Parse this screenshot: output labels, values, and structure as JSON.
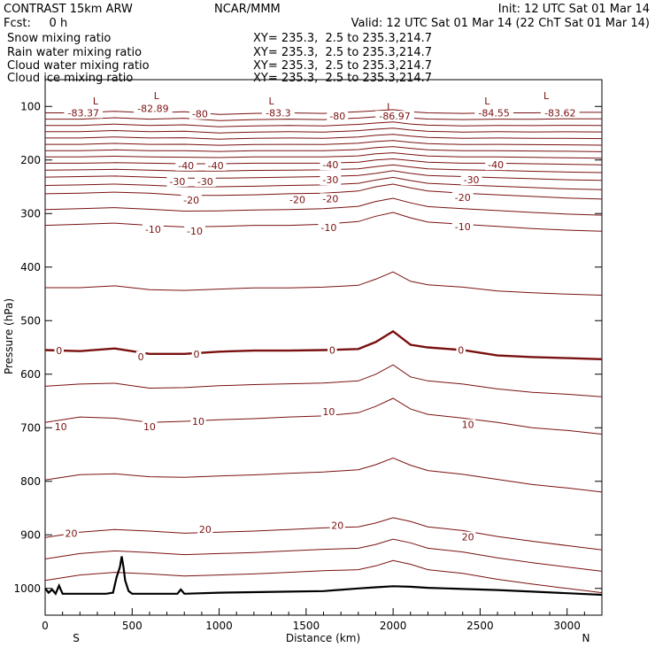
{
  "header": {
    "title_left": "CONTRAST 15km ARW",
    "title_center": "NCAR/MMM",
    "init": "Init: 12 UTC Sat 01 Mar 14",
    "fcst": "Fcst:     0 h",
    "valid": "Valid: 12 UTC Sat 01 Mar 14 (22 ChT Sat 01 Mar 14)"
  },
  "legend": [
    {
      "label": "Snow mixing ratio",
      "xy": "XY= 235.3,  2.5 to 235.3,214.7",
      "color": "#000000"
    },
    {
      "label": "Rain water mixing ratio",
      "xy": "XY= 235.3,  2.5 to 235.3,214.7",
      "color": "#e00000"
    },
    {
      "label": "Cloud water mixing ratio",
      "xy": "XY= 235.3,  2.5 to 235.3,214.7",
      "color": "#0000c0"
    },
    {
      "label": "Cloud ice mixing ratio",
      "xy": "XY= 235.3,  2.5 to 235.3,214.7",
      "color": "#000000"
    }
  ],
  "chart_data": {
    "type": "line",
    "xlabel": "Distance (km)",
    "ylabel": "Pressure (hPa)",
    "xlim": [
      0,
      3200
    ],
    "ylim": [
      1050,
      50
    ],
    "x_ticks": [
      "0",
      "500",
      "1000",
      "1500",
      "2000",
      "2500",
      "3000"
    ],
    "y_ticks": [
      "100",
      "200",
      "300",
      "400",
      "500",
      "600",
      "700",
      "800",
      "900",
      "1000"
    ],
    "x_end_labels": {
      "left": "S",
      "right": "N"
    },
    "line_color": "#7a1010",
    "contour_interval": 5,
    "isotherm_x": [
      0,
      200,
      400,
      600,
      800,
      1000,
      1200,
      1400,
      1600,
      1800,
      1900,
      2000,
      2100,
      2200,
      2400,
      2600,
      2800,
      3000,
      3200
    ],
    "isotherms": [
      {
        "value": 20,
        "p": [
          905,
          895,
          890,
          893,
          897,
          895,
          893,
          890,
          887,
          885,
          878,
          868,
          875,
          885,
          892,
          903,
          912,
          920,
          928
        ]
      },
      {
        "value": 10,
        "p": [
          690,
          680,
          682,
          690,
          688,
          685,
          683,
          680,
          678,
          672,
          660,
          645,
          665,
          675,
          682,
          690,
          700,
          705,
          712
        ]
      },
      {
        "value": 0,
        "p": [
          555,
          557,
          552,
          562,
          562,
          558,
          556,
          556,
          555,
          553,
          540,
          520,
          545,
          550,
          555,
          565,
          568,
          570,
          572
        ]
      },
      {
        "value": -10,
        "p": [
          322,
          320,
          318,
          322,
          325,
          324,
          322,
          322,
          320,
          315,
          305,
          298,
          308,
          316,
          320,
          324,
          328,
          331,
          333
        ]
      },
      {
        "value": -20,
        "p": [
          263,
          262,
          260,
          262,
          266,
          266,
          265,
          263,
          262,
          258,
          250,
          245,
          252,
          258,
          262,
          265,
          268,
          271,
          273
        ]
      },
      {
        "value": -30,
        "p": [
          232,
          231,
          230,
          232,
          234,
          234,
          233,
          232,
          231,
          229,
          225,
          220,
          225,
          229,
          231,
          233,
          235,
          237,
          238
        ]
      },
      {
        "value": -40,
        "p": [
          206,
          206,
          205,
          206,
          207,
          207,
          206,
          206,
          206,
          204,
          200,
          198,
          201,
          204,
          206,
          206,
          207,
          208,
          209
        ]
      },
      {
        "value": -80,
        "p": [
          112,
          112,
          109,
          112,
          110,
          115,
          113,
          112,
          113,
          110,
          108,
          106,
          110,
          112,
          113,
          112,
          112,
          111,
          111
        ]
      }
    ],
    "isotherm_labels": [
      {
        "text": "-83.37",
        "x": 220,
        "p": 112
      },
      {
        "text": "-82.89",
        "x": 620,
        "p": 104
      },
      {
        "text": "-80",
        "x": 890,
        "p": 114
      },
      {
        "text": "-83.3",
        "x": 1340,
        "p": 112
      },
      {
        "text": "-80",
        "x": 1680,
        "p": 118
      },
      {
        "text": "-86.97",
        "x": 2010,
        "p": 118
      },
      {
        "text": "-84.55",
        "x": 2580,
        "p": 112
      },
      {
        "text": "-83.62",
        "x": 2960,
        "p": 112
      },
      {
        "text": "-40",
        "x": 810,
        "p": 210
      },
      {
        "text": "-40",
        "x": 980,
        "p": 210
      },
      {
        "text": "-40",
        "x": 1640,
        "p": 209
      },
      {
        "text": "-40",
        "x": 2590,
        "p": 209
      },
      {
        "text": "-30",
        "x": 760,
        "p": 240
      },
      {
        "text": "-30",
        "x": 920,
        "p": 240
      },
      {
        "text": "-30",
        "x": 1640,
        "p": 237
      },
      {
        "text": "-30",
        "x": 2450,
        "p": 237
      },
      {
        "text": "-20",
        "x": 840,
        "p": 275
      },
      {
        "text": "-20",
        "x": 1450,
        "p": 274
      },
      {
        "text": "-20",
        "x": 1640,
        "p": 272
      },
      {
        "text": "-20",
        "x": 2400,
        "p": 270
      },
      {
        "text": "-10",
        "x": 620,
        "p": 329
      },
      {
        "text": "-10",
        "x": 860,
        "p": 333
      },
      {
        "text": "-10",
        "x": 1630,
        "p": 326
      },
      {
        "text": "-10",
        "x": 2400,
        "p": 324
      },
      {
        "text": "0",
        "x": 80,
        "p": 556
      },
      {
        "text": "0",
        "x": 550,
        "p": 567
      },
      {
        "text": "0",
        "x": 870,
        "p": 562
      },
      {
        "text": "0",
        "x": 1650,
        "p": 555
      },
      {
        "text": "0",
        "x": 2390,
        "p": 555
      },
      {
        "text": "10",
        "x": 90,
        "p": 698
      },
      {
        "text": "10",
        "x": 600,
        "p": 698
      },
      {
        "text": "10",
        "x": 880,
        "p": 688
      },
      {
        "text": "10",
        "x": 1630,
        "p": 670
      },
      {
        "text": "10",
        "x": 2430,
        "p": 694
      },
      {
        "text": "20",
        "x": 150,
        "p": 897
      },
      {
        "text": "20",
        "x": 920,
        "p": 890
      },
      {
        "text": "20",
        "x": 1680,
        "p": 882
      },
      {
        "text": "20",
        "x": 2430,
        "p": 904
      }
    ],
    "low_markers": [
      {
        "text": "L",
        "x": 290,
        "p": 90
      },
      {
        "text": "L",
        "x": 640,
        "p": 80
      },
      {
        "text": "L",
        "x": 1300,
        "p": 90
      },
      {
        "text": "L",
        "x": 1980,
        "p": 100
      },
      {
        "text": "L",
        "x": 2540,
        "p": 90
      },
      {
        "text": "L",
        "x": 2880,
        "p": 80
      }
    ],
    "terrain": {
      "x": [
        0,
        20,
        40,
        60,
        80,
        100,
        150,
        250,
        350,
        390,
        410,
        430,
        440,
        450,
        460,
        480,
        500,
        550,
        600,
        700,
        760,
        780,
        800,
        1000,
        1200,
        1400,
        1600,
        1800,
        1900,
        2000,
        2100,
        2200,
        2400,
        2600,
        2800,
        3000,
        3200
      ],
      "p": [
        1000,
        1008,
        1002,
        1010,
        995,
        1010,
        1010,
        1010,
        1010,
        1008,
        980,
        960,
        940,
        960,
        985,
        1005,
        1010,
        1010,
        1010,
        1010,
        1010,
        1002,
        1010,
        1008,
        1007,
        1006,
        1005,
        1000,
        998,
        996,
        997,
        999,
        1001,
        1003,
        1006,
        1009,
        1012
      ]
    }
  }
}
